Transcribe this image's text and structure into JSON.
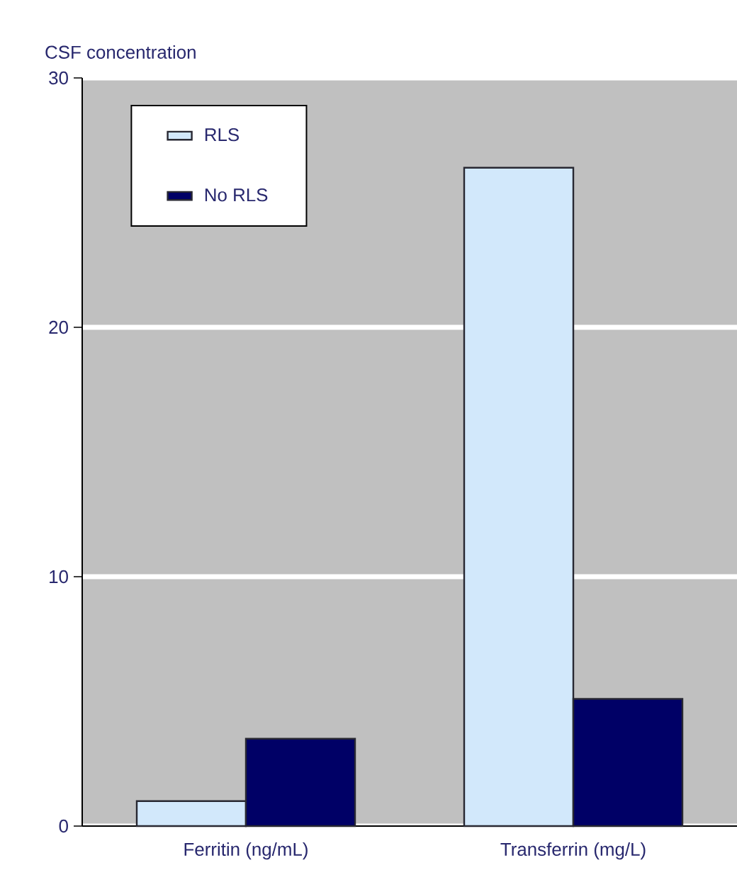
{
  "chart_data": {
    "type": "bar",
    "ylabel": "CSF concentration",
    "categories": [
      "Ferritin (ng/mL)",
      "Transferrin (mg/L)"
    ],
    "series": [
      {
        "name": "RLS",
        "color": "#d2e8fb",
        "values": [
          1.0,
          26.4
        ]
      },
      {
        "name": "No RLS",
        "color": "#000066",
        "values": [
          3.5,
          5.1
        ]
      }
    ],
    "ylim": [
      0,
      30
    ],
    "yticks": [
      0,
      10,
      20,
      30
    ],
    "grid": "y",
    "legend": "top left"
  }
}
